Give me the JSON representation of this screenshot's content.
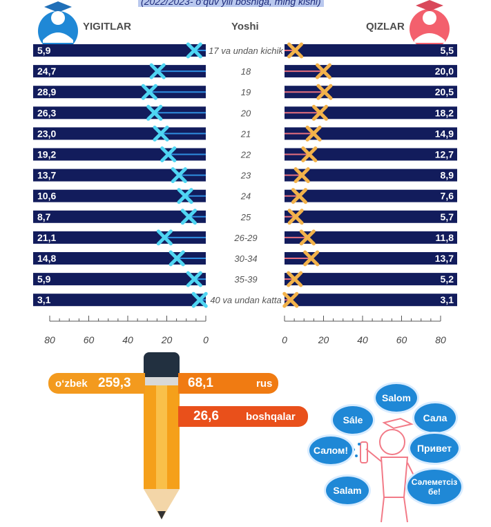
{
  "subtitle": "(2022/2023- o‘quv yili boshiga, ming kishi)",
  "headers": {
    "left": "YIGITLAR",
    "center": "Yoshi",
    "right": "QIZLAR"
  },
  "chart_data": {
    "type": "bar",
    "subtitle": "(2022/2023- o‘quv yili boshiga, ming kishi)",
    "categories": [
      "17 va undan kichik",
      "18",
      "19",
      "20",
      "21",
      "22",
      "23",
      "24",
      "25",
      "26-29",
      "30-34",
      "35-39",
      "40 va undan katta"
    ],
    "series": [
      {
        "name": "YIGITLAR",
        "values": [
          5.9,
          24.7,
          28.9,
          26.3,
          23.0,
          19.2,
          13.7,
          10.6,
          8.7,
          21.1,
          14.8,
          5.9,
          3.1
        ]
      },
      {
        "name": "QIZLAR",
        "values": [
          5.5,
          20.0,
          20.5,
          18.2,
          14.9,
          12.7,
          8.9,
          7.6,
          5.7,
          11.8,
          13.7,
          5.2,
          3.1
        ]
      }
    ],
    "labels_left": [
      "5,9",
      "24,7",
      "28,9",
      "26,3",
      "23,0",
      "19,2",
      "13,7",
      "10,6",
      "8,7",
      "21,1",
      "14,8",
      "5,9",
      "3,1"
    ],
    "labels_right": [
      "5,5",
      "20,0",
      "20,5",
      "18,2",
      "14,9",
      "12,7",
      "8,9",
      "7,6",
      "5,7",
      "11,8",
      "13,7",
      "5,2",
      "3,1"
    ],
    "xlim": [
      0,
      80
    ],
    "ticks": [
      "80",
      "60",
      "40",
      "20",
      "0"
    ],
    "ticks_right": [
      "0",
      "20",
      "40",
      "60",
      "80"
    ],
    "colors": {
      "bar": "#121c5c",
      "left_line": "#2f8ee0",
      "right_line": "#e8707e",
      "left_marker": "#4fd5f2",
      "right_marker": "#f2b24a"
    }
  },
  "languages": [
    {
      "name": "o‘zbek",
      "value": "259,3",
      "color": "#f39a1e"
    },
    {
      "name": "rus",
      "value": "68,1",
      "color": "#f07b12"
    },
    {
      "name": "boshqalar",
      "value": "26,6",
      "color": "#e9501b"
    }
  ],
  "greetings": [
    "Salom",
    "Sále",
    "Сала",
    "Салом!",
    "Привет",
    "Salam",
    "Сәлеметсіз бе!"
  ]
}
